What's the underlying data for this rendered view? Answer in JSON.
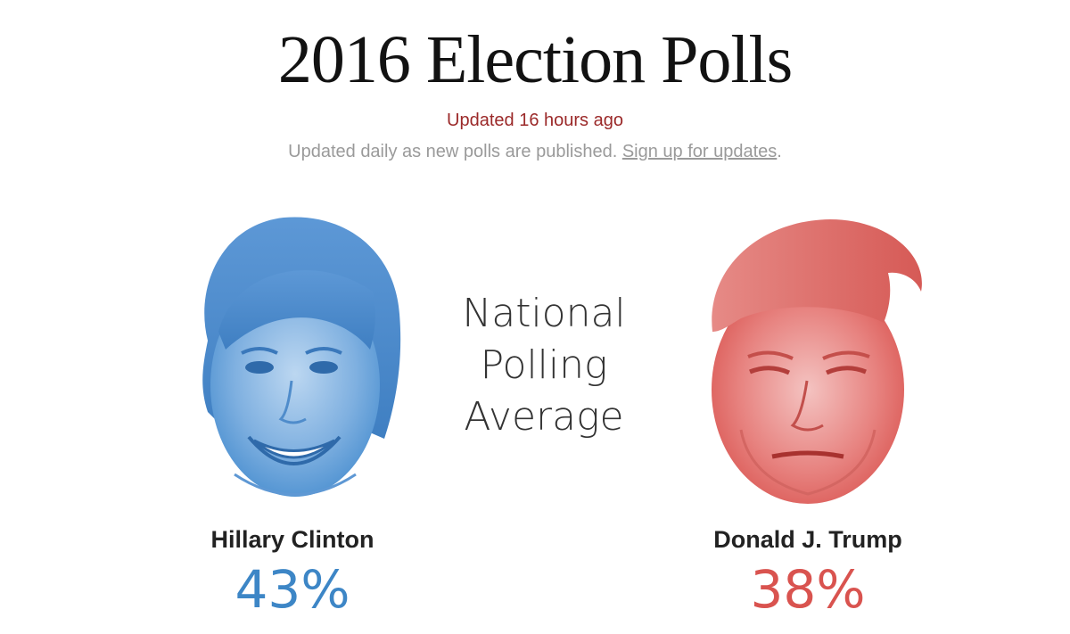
{
  "header": {
    "title": "2016 Election Polls",
    "updated": "Updated 16 hours ago",
    "note_text": "Updated daily as new polls are published.",
    "signup_link": "Sign up for updates",
    "note_end": "."
  },
  "center_label": {
    "line1": "National",
    "line2": "Polling",
    "line3": "Average"
  },
  "candidates": [
    {
      "name": "Hillary Clinton",
      "percent": "43%",
      "color": "#3d86c6"
    },
    {
      "name": "Donald J. Trump",
      "percent": "38%",
      "color": "#d9534f"
    }
  ]
}
